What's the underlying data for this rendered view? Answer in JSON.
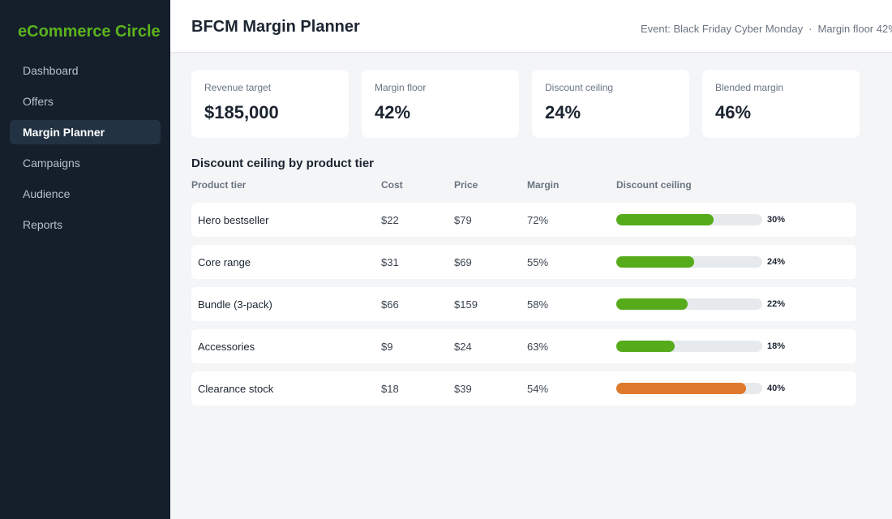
{
  "sidebar": {
    "brand": "eCommerce Circle",
    "items": [
      {
        "label": "Dashboard",
        "active": false
      },
      {
        "label": "Offers",
        "active": false
      },
      {
        "label": "Margin Planner",
        "active": true
      },
      {
        "label": "Campaigns",
        "active": false
      },
      {
        "label": "Audience",
        "active": false
      },
      {
        "label": "Reports",
        "active": false
      }
    ]
  },
  "header": {
    "title": "BFCM Margin Planner",
    "event": "Event: Black Friday Cyber Monday",
    "separator": "·",
    "margin_floor": "Margin floor 42%"
  },
  "cards": [
    {
      "label": "Revenue target",
      "value": "$185,000"
    },
    {
      "label": "Margin floor",
      "value": "42%"
    },
    {
      "label": "Discount ceiling",
      "value": "24%"
    },
    {
      "label": "Blended margin",
      "value": "46%"
    }
  ],
  "table": {
    "title": "Discount ceiling by product tier",
    "columns": [
      "Product tier",
      "Cost",
      "Price",
      "Margin",
      "Discount ceiling"
    ],
    "scale_max_percent": 45,
    "rows": [
      {
        "tier": "Hero bestseller",
        "cost": "$22",
        "price": "$79",
        "margin": "72%",
        "ceiling": "30%",
        "ceiling_value": 30,
        "status": "ok"
      },
      {
        "tier": "Core range",
        "cost": "$31",
        "price": "$69",
        "margin": "55%",
        "ceiling": "24%",
        "ceiling_value": 24,
        "status": "ok"
      },
      {
        "tier": "Bundle (3-pack)",
        "cost": "$66",
        "price": "$159",
        "margin": "58%",
        "ceiling": "22%",
        "ceiling_value": 22,
        "status": "ok"
      },
      {
        "tier": "Accessories",
        "cost": "$9",
        "price": "$24",
        "margin": "63%",
        "ceiling": "18%",
        "ceiling_value": 18,
        "status": "ok"
      },
      {
        "tier": "Clearance stock",
        "cost": "$18",
        "price": "$39",
        "margin": "54%",
        "ceiling": "40%",
        "ceiling_value": 40,
        "status": "warning"
      }
    ]
  },
  "colors": {
    "brand": "#5bb31e",
    "bar_ok": "#56ab1b",
    "bar_warning": "#df7a2c",
    "sidebar_bg": "#151f2b"
  }
}
